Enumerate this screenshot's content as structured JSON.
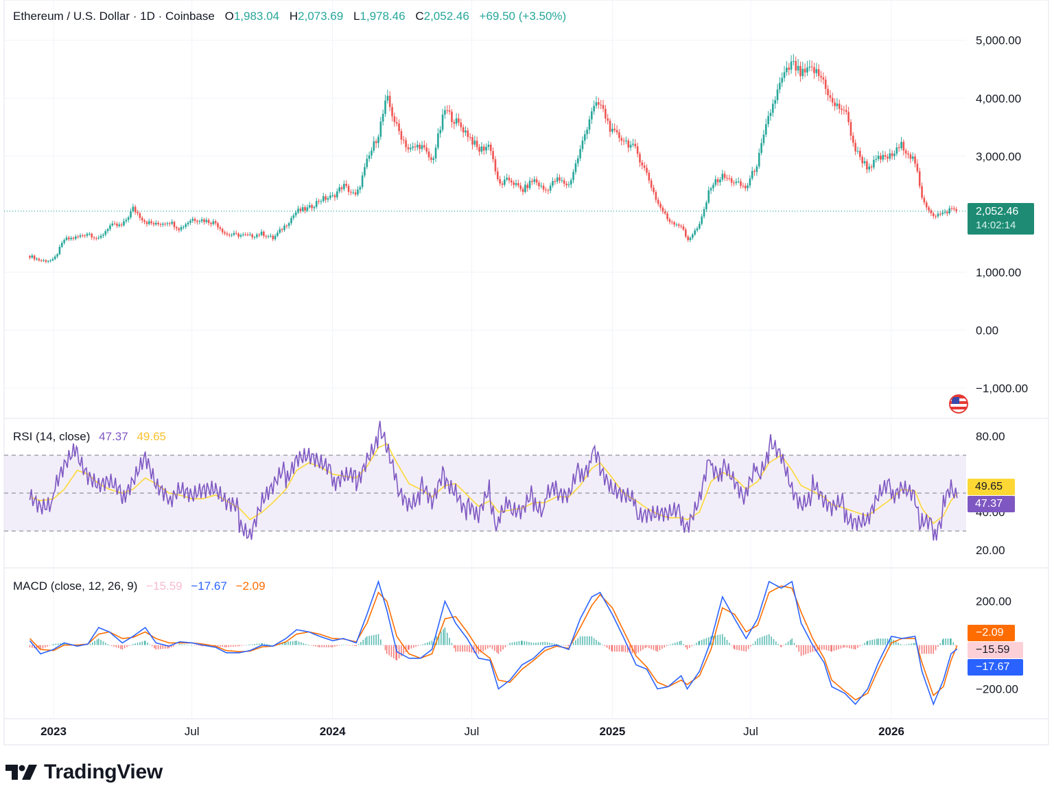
{
  "header": {
    "symbol": "Ethereum / U.S. Dollar · 1D · Coinbase",
    "open_label": "O",
    "open": "1,983.04",
    "high_label": "H",
    "high": "2,073.69",
    "low_label": "L",
    "low": "1,978.46",
    "close_label": "C",
    "close": "2,052.46",
    "change": "+69.50 (+3.50%)"
  },
  "price_tag": {
    "value": "2,052.46",
    "countdown": "14:02:14"
  },
  "rsi_legend": {
    "label": "RSI (14, close)",
    "rsi": "47.37",
    "ma": "49.65"
  },
  "rsi_tags": {
    "ma": "49.65",
    "rsi": "47.37"
  },
  "macd_legend": {
    "label": "MACD (close, 12, 26, 9)",
    "hist": "−15.59",
    "macd": "−17.67",
    "signal": "−2.09"
  },
  "macd_tags": {
    "signal": "−2.09",
    "hist": "−15.59",
    "macd": "−17.67"
  },
  "brand": {
    "name": "TradingView"
  },
  "colors": {
    "up": "#26a69a",
    "down": "#ef5350",
    "rsi": "#7e57c2",
    "rsi_ma": "#fdd835",
    "macd": "#2962ff",
    "signal": "#ff6d00",
    "band": "#ede7f6"
  },
  "chart_data": [
    {
      "type": "candlestick",
      "title": "Ethereum / U.S. Dollar · 1D · Coinbase",
      "x_ticks": [
        "2023",
        "Jul",
        "2024",
        "Jul",
        "2025",
        "Jul",
        "2026"
      ],
      "y_ticks": [
        "5,000.00",
        "4,000.00",
        "3,000.00",
        "1,000.00",
        "0.00",
        "−1,000.00"
      ],
      "ylim": [
        -1450,
        5600
      ],
      "last_price": 2052.46,
      "series": [
        {
          "x": [
            "2022-12-01",
            "2022-12-15",
            "2023-01-01",
            "2023-01-15",
            "2023-02-01",
            "2023-02-15",
            "2023-03-01",
            "2023-03-15",
            "2023-04-01",
            "2023-04-15",
            "2023-05-01",
            "2023-05-15",
            "2023-06-01",
            "2023-06-15",
            "2023-07-01",
            "2023-07-15",
            "2023-08-01",
            "2023-08-15",
            "2023-09-01",
            "2023-09-15",
            "2023-10-01",
            "2023-10-15",
            "2023-11-01",
            "2023-11-15",
            "2023-12-01",
            "2023-12-15",
            "2024-01-01",
            "2024-01-15",
            "2024-02-01",
            "2024-02-15",
            "2024-03-01",
            "2024-03-12",
            "2024-03-25",
            "2024-04-10",
            "2024-04-25",
            "2024-05-10",
            "2024-05-27",
            "2024-06-10",
            "2024-06-25",
            "2024-07-10",
            "2024-07-25",
            "2024-08-05",
            "2024-08-20",
            "2024-09-05",
            "2024-09-20",
            "2024-10-05",
            "2024-10-20",
            "2024-11-05",
            "2024-11-20",
            "2024-12-05",
            "2024-12-16",
            "2025-01-01",
            "2025-01-15",
            "2025-02-01",
            "2025-02-15",
            "2025-03-01",
            "2025-03-15",
            "2025-04-01",
            "2025-04-09",
            "2025-04-25",
            "2025-05-10",
            "2025-05-25",
            "2025-06-10",
            "2025-06-25",
            "2025-07-10",
            "2025-07-25",
            "2025-08-10",
            "2025-08-24",
            "2025-09-05",
            "2025-09-20",
            "2025-10-05",
            "2025-10-15",
            "2025-11-01",
            "2025-11-15",
            "2025-12-01",
            "2025-12-15",
            "2026-01-01",
            "2026-01-15",
            "2026-02-01",
            "2026-02-10",
            "2026-02-25",
            "2026-03-10",
            "2026-03-20",
            "2026-03-28"
          ],
          "close": [
            1280,
            1200,
            1200,
            1560,
            1600,
            1680,
            1560,
            1800,
            1800,
            2100,
            1870,
            1820,
            1880,
            1750,
            1920,
            1900,
            1850,
            1650,
            1640,
            1620,
            1670,
            1580,
            1820,
            2050,
            2100,
            2250,
            2300,
            2500,
            2300,
            2900,
            3400,
            4000,
            3500,
            3100,
            3200,
            2900,
            3800,
            3600,
            3400,
            3100,
            3200,
            2500,
            2600,
            2400,
            2600,
            2400,
            2600,
            2500,
            3100,
            3800,
            3900,
            3400,
            3300,
            3100,
            2700,
            2200,
            1900,
            1800,
            1550,
            1800,
            2500,
            2650,
            2550,
            2450,
            2900,
            3700,
            4300,
            4600,
            4400,
            4500,
            4300,
            3900,
            3800,
            3100,
            2800,
            2950,
            3000,
            3200,
            2900,
            2250,
            1990,
            2000,
            2100,
            2052.46
          ]
        }
      ]
    },
    {
      "type": "line",
      "title": "RSI (14, close)",
      "y_ticks": [
        "80.00",
        "40.00",
        "20.00"
      ],
      "ylim": [
        12,
        88
      ],
      "band": [
        30,
        70
      ],
      "midline": 50,
      "series": [
        {
          "values": [
            45,
            42,
            48,
            60,
            72,
            58,
            50,
            52,
            48,
            55,
            65,
            50,
            46,
            50,
            44,
            48,
            52,
            42,
            38,
            30,
            45,
            50,
            60,
            70,
            68,
            62,
            58,
            60,
            57,
            72,
            82,
            75,
            55,
            48,
            52,
            45,
            60,
            55,
            42,
            38,
            50,
            32,
            44,
            40,
            48,
            44,
            52,
            47,
            62,
            70,
            65,
            50,
            45,
            42,
            40,
            37,
            35,
            38,
            34,
            45,
            68,
            62,
            55,
            48,
            62,
            74,
            70,
            55,
            48,
            52,
            46,
            40,
            42,
            38,
            36,
            46,
            52,
            56,
            48,
            32,
            30,
            42,
            52,
            47.37
          ]
        },
        {
          "values": [
            48,
            46,
            47,
            52,
            62,
            60,
            55,
            52,
            50,
            52,
            58,
            55,
            50,
            49,
            47,
            47,
            49,
            46,
            42,
            36,
            40,
            45,
            52,
            62,
            66,
            64,
            60,
            59,
            58,
            64,
            74,
            76,
            66,
            55,
            52,
            48,
            54,
            55,
            49,
            43,
            46,
            40,
            41,
            42,
            45,
            45,
            48,
            48,
            54,
            63,
            66,
            58,
            50,
            46,
            42,
            39,
            37,
            37,
            36,
            40,
            56,
            61,
            58,
            52,
            56,
            66,
            70,
            62,
            54,
            51,
            48,
            44,
            42,
            40,
            38,
            42,
            47,
            52,
            51,
            42,
            34,
            38,
            46,
            49.65
          ]
        }
      ]
    },
    {
      "type": "line",
      "title": "MACD (close, 12, 26, 9)",
      "y_ticks": [
        "200.00",
        "−200.00"
      ],
      "ylim": [
        -330,
        340
      ],
      "series": [
        {
          "values": [
            20,
            -40,
            -20,
            10,
            -5,
            5,
            80,
            60,
            10,
            40,
            80,
            10,
            -5,
            15,
            10,
            0,
            -10,
            -35,
            -35,
            -25,
            0,
            -5,
            30,
            70,
            60,
            40,
            20,
            30,
            10,
            140,
            290,
            160,
            -30,
            -60,
            -60,
            -20,
            200,
            100,
            30,
            -60,
            -70,
            -200,
            -160,
            -90,
            -60,
            -10,
            0,
            -20,
            120,
            220,
            240,
            140,
            40,
            -90,
            -110,
            -200,
            -190,
            -140,
            -200,
            -120,
            20,
            220,
            120,
            30,
            120,
            290,
            260,
            290,
            100,
            0,
            -80,
            -190,
            -220,
            -270,
            -200,
            -80,
            40,
            30,
            40,
            -120,
            -270,
            -160,
            -40,
            -17.67
          ]
        },
        {
          "values": [
            30,
            -20,
            -25,
            0,
            0,
            5,
            50,
            60,
            30,
            35,
            60,
            30,
            10,
            10,
            10,
            5,
            -5,
            -25,
            -30,
            -28,
            -8,
            -5,
            15,
            50,
            60,
            50,
            30,
            28,
            15,
            100,
            240,
            200,
            40,
            -40,
            -60,
            -40,
            120,
            130,
            60,
            -20,
            -60,
            -160,
            -170,
            -110,
            -70,
            -25,
            -5,
            -15,
            80,
            180,
            230,
            170,
            70,
            -50,
            -100,
            -170,
            -190,
            -160,
            -180,
            -140,
            -20,
            170,
            140,
            60,
            90,
            240,
            270,
            260,
            150,
            30,
            -60,
            -160,
            -210,
            -250,
            -220,
            -110,
            10,
            30,
            30,
            -80,
            -230,
            -190,
            -70,
            -2.09
          ]
        },
        {
          "values": [
            -10,
            -20,
            5,
            10,
            -5,
            0,
            30,
            0,
            -20,
            5,
            20,
            -20,
            -15,
            5,
            0,
            -5,
            -5,
            -10,
            -5,
            3,
            8,
            0,
            15,
            20,
            0,
            -10,
            -10,
            2,
            -5,
            40,
            50,
            -40,
            -70,
            -20,
            0,
            20,
            80,
            -30,
            -30,
            -40,
            -10,
            -40,
            10,
            20,
            10,
            15,
            5,
            -5,
            40,
            40,
            10,
            -30,
            -30,
            -40,
            -10,
            -30,
            0,
            20,
            -20,
            20,
            40,
            50,
            -20,
            -30,
            30,
            50,
            -10,
            30,
            -50,
            -30,
            -20,
            -30,
            -10,
            -20,
            20,
            30,
            30,
            0,
            10,
            -40,
            -40,
            30,
            30,
            -15.59
          ]
        }
      ]
    }
  ]
}
